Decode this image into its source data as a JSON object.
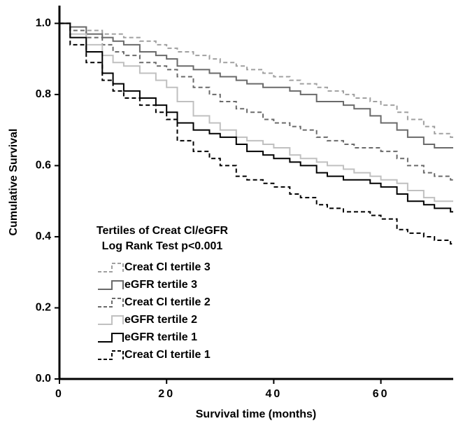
{
  "chart_data": {
    "type": "line",
    "step": true,
    "xlabel": "Survival time (months)",
    "ylabel": "Cumulative Survival",
    "legend_title": [
      "Tertiles of Creat Cl/eGFR",
      "Log Rank Test p<0.001"
    ],
    "legend_position": "lower left",
    "x": [
      0,
      2,
      5,
      8,
      10,
      12,
      15,
      18,
      20,
      22,
      25,
      28,
      30,
      33,
      35,
      38,
      40,
      43,
      45,
      48,
      50,
      53,
      55,
      58,
      60,
      63,
      65,
      68,
      70,
      73
    ],
    "xlim": [
      0,
      73.5
    ],
    "xticks": [
      0,
      20,
      40,
      60
    ],
    "ylim": [
      0,
      1.05
    ],
    "yticks": [
      {
        "value": 0,
        "label": "0.0"
      },
      0.2,
      0.4,
      0.6,
      0.8,
      {
        "value": 1,
        "label": "1.0"
      }
    ],
    "series": [
      {
        "name": "Creat Cl tertile 3",
        "color": "#a0a0a0",
        "dashed": true,
        "values": [
          1,
          0.99,
          0.98,
          0.97,
          0.97,
          0.96,
          0.95,
          0.94,
          0.93,
          0.92,
          0.91,
          0.9,
          0.89,
          0.88,
          0.87,
          0.86,
          0.85,
          0.84,
          0.83,
          0.82,
          0.81,
          0.8,
          0.79,
          0.78,
          0.77,
          0.75,
          0.73,
          0.71,
          0.69,
          0.68
        ]
      },
      {
        "name": "eGFR tertile 3",
        "color": "#6a6a6a",
        "dashed": false,
        "values": [
          1,
          0.99,
          0.97,
          0.96,
          0.95,
          0.94,
          0.92,
          0.91,
          0.9,
          0.88,
          0.87,
          0.86,
          0.85,
          0.84,
          0.83,
          0.82,
          0.82,
          0.81,
          0.8,
          0.78,
          0.78,
          0.77,
          0.76,
          0.74,
          0.72,
          0.7,
          0.68,
          0.66,
          0.65,
          0.65
        ]
      },
      {
        "name": "Creat Cl tertile 2",
        "color": "#6a6a6a",
        "dashed": true,
        "values": [
          1,
          0.98,
          0.96,
          0.94,
          0.92,
          0.91,
          0.89,
          0.88,
          0.87,
          0.85,
          0.82,
          0.8,
          0.78,
          0.76,
          0.75,
          0.73,
          0.72,
          0.71,
          0.7,
          0.68,
          0.67,
          0.66,
          0.65,
          0.65,
          0.64,
          0.62,
          0.6,
          0.58,
          0.57,
          0.56
        ]
      },
      {
        "name": "eGFR tertile 2",
        "color": "#c0c0c0",
        "dashed": false,
        "values": [
          1,
          0.97,
          0.94,
          0.91,
          0.89,
          0.88,
          0.86,
          0.84,
          0.82,
          0.78,
          0.74,
          0.72,
          0.7,
          0.68,
          0.67,
          0.66,
          0.65,
          0.63,
          0.62,
          0.61,
          0.6,
          0.59,
          0.58,
          0.57,
          0.56,
          0.55,
          0.53,
          0.51,
          0.5,
          0.5
        ]
      },
      {
        "name": "eGFR tertile 1",
        "color": "#000000",
        "dashed": false,
        "values": [
          1,
          0.96,
          0.92,
          0.86,
          0.83,
          0.81,
          0.79,
          0.77,
          0.75,
          0.72,
          0.7,
          0.69,
          0.68,
          0.66,
          0.64,
          0.63,
          0.62,
          0.61,
          0.6,
          0.58,
          0.57,
          0.56,
          0.56,
          0.55,
          0.54,
          0.52,
          0.5,
          0.49,
          0.48,
          0.47
        ]
      },
      {
        "name": "Creat Cl tertile 1",
        "color": "#000000",
        "dashed": true,
        "values": [
          1,
          0.94,
          0.89,
          0.84,
          0.81,
          0.79,
          0.77,
          0.75,
          0.73,
          0.67,
          0.64,
          0.62,
          0.6,
          0.57,
          0.56,
          0.55,
          0.54,
          0.52,
          0.51,
          0.49,
          0.48,
          0.47,
          0.47,
          0.46,
          0.45,
          0.42,
          0.41,
          0.4,
          0.39,
          0.38
        ]
      }
    ]
  }
}
